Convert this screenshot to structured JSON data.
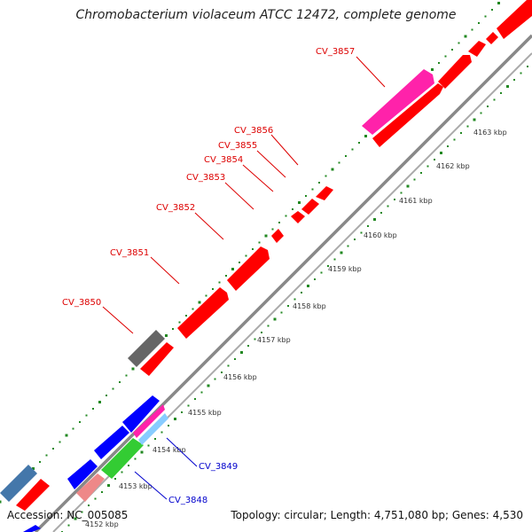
{
  "title": "Chromobacterium violaceum ATCC 12472, complete genome",
  "accession": "Accession: NC_005085",
  "summary": "Topology: circular; Length: 4,751,080 bp; Genes: 4,530",
  "colors": {
    "forward_gene": "#ff0000",
    "reverse_gene": "#0000ff",
    "highlight_gene": "#ff22aa",
    "gray_gene": "#666666",
    "steel_gene": "#4477aa",
    "green_gene": "#33cc33",
    "pink_gene": "#ee8888",
    "scale_dots": "#228822",
    "backbone": "#888888",
    "label_forward": "#dd0000",
    "label_reverse": "#0000cc"
  },
  "scale_labels": [
    "4152 kbp",
    "4153 kbp",
    "4154 kbp",
    "4155 kbp",
    "4156 kbp",
    "4157 kbp",
    "4158 kbp",
    "4159 kbp",
    "4160 kbp",
    "4161 kbp",
    "4162 kbp",
    "4163 kbp"
  ],
  "gene_labels_forward": [
    "CV_3850",
    "CV_3851",
    "CV_3852",
    "CV_3853",
    "CV_3854",
    "CV_3855",
    "CV_3856",
    "CV_3857"
  ],
  "gene_labels_reverse": [
    "CV_3848",
    "CV_3849"
  ]
}
